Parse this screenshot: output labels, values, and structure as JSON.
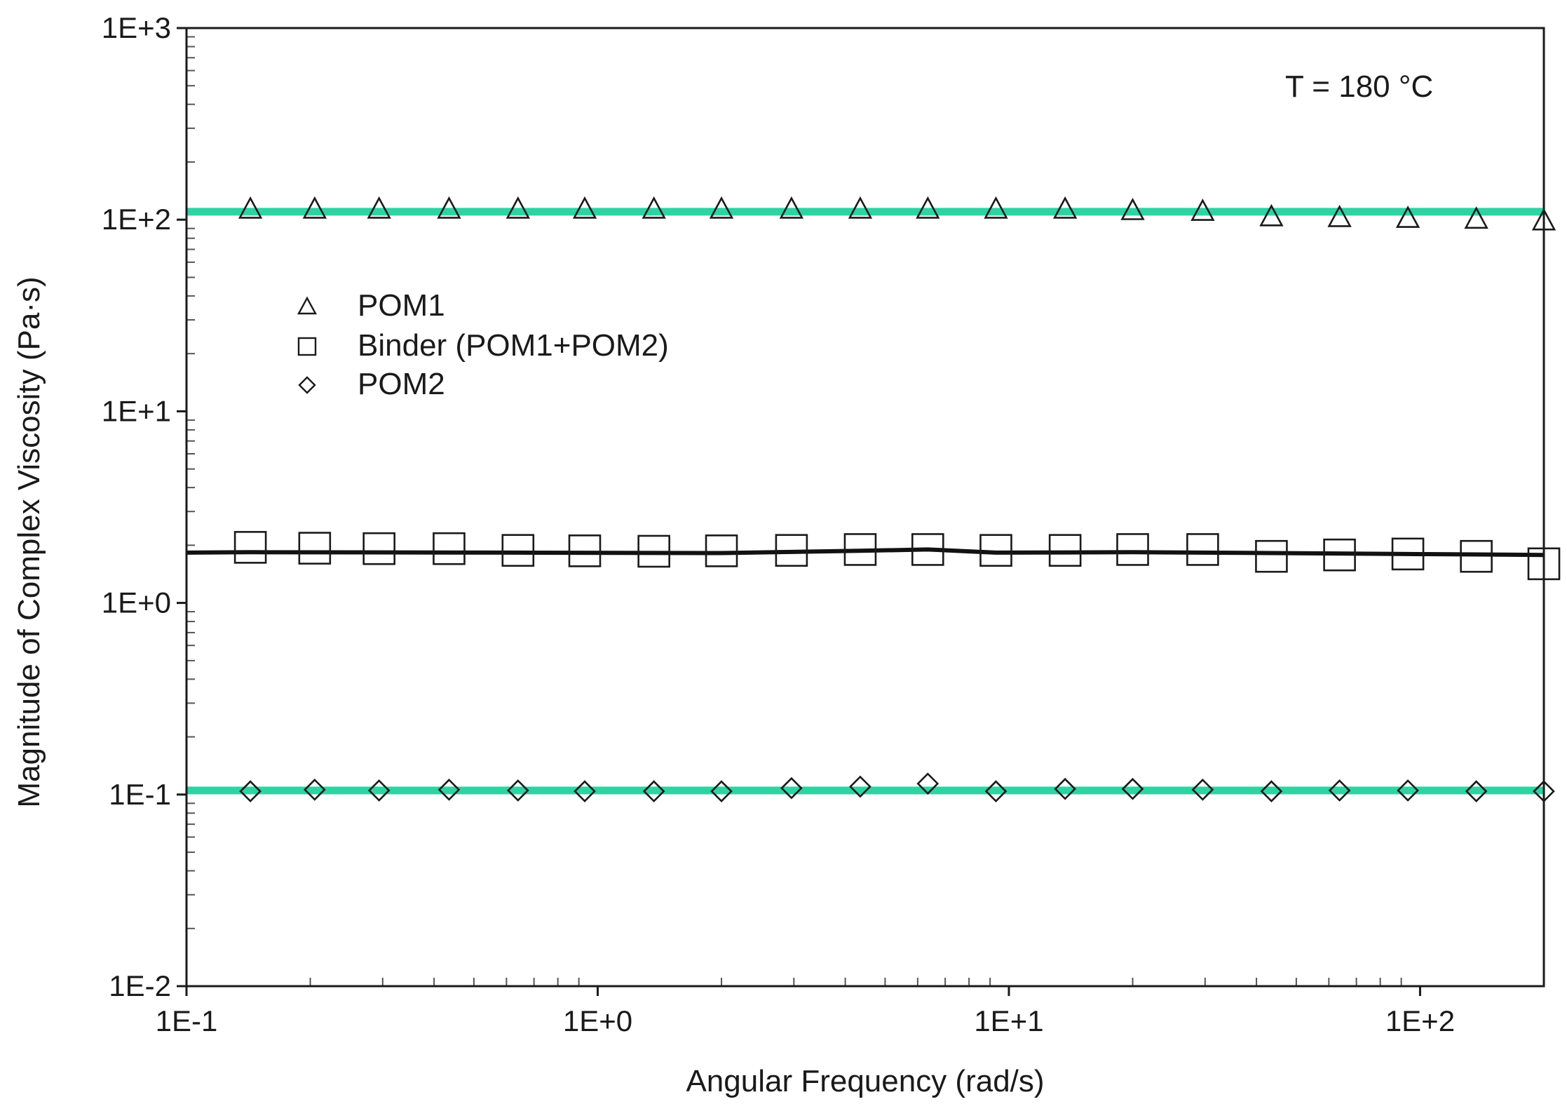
{
  "chart_data": {
    "type": "scatter",
    "title": "",
    "xlabel": "Angular Frequency (rad/s)",
    "ylabel": "Magnitude of Complex Viscosity (Pa·s)",
    "x_scale": "log",
    "y_scale": "log",
    "xlim": [
      0.1,
      200
    ],
    "ylim": [
      0.01,
      1000
    ],
    "x_ticks": [
      "1E-1",
      "1E+0",
      "1E+1",
      "1E+2"
    ],
    "y_ticks": [
      "1E-2",
      "1E-1",
      "1E+0",
      "1E+1",
      "1E+2",
      "1E+3"
    ],
    "grid": false,
    "legend_position": "upper-left",
    "annotation": "T = 180 °C",
    "x": [
      0.143,
      0.205,
      0.294,
      0.435,
      0.64,
      0.93,
      1.37,
      2.0,
      2.96,
      4.35,
      6.35,
      9.3,
      13.7,
      20.0,
      29.6,
      43.5,
      63.7,
      93.4,
      137,
      200
    ],
    "series": [
      {
        "name": "POM1",
        "marker": "triangle",
        "values": [
          114,
          114,
          114,
          114,
          114,
          114,
          114,
          114,
          114,
          114,
          114,
          114,
          114,
          112,
          111,
          104,
          103,
          102,
          101,
          99
        ]
      },
      {
        "name": "Binder (POM1+POM2)",
        "marker": "square",
        "values": [
          1.95,
          1.93,
          1.92,
          1.92,
          1.88,
          1.87,
          1.86,
          1.87,
          1.88,
          1.9,
          1.9,
          1.88,
          1.88,
          1.9,
          1.9,
          1.75,
          1.78,
          1.8,
          1.75,
          1.6
        ]
      },
      {
        "name": "POM2",
        "marker": "diamond",
        "values": [
          0.104,
          0.106,
          0.105,
          0.106,
          0.105,
          0.104,
          0.104,
          0.104,
          0.108,
          0.11,
          0.114,
          0.104,
          0.107,
          0.107,
          0.106,
          0.104,
          0.105,
          0.105,
          0.104,
          0.104
        ]
      }
    ],
    "fit_lines": [
      {
        "color": "#2ed3a4",
        "x": [
          0.1,
          200
        ],
        "y": [
          110,
          110
        ]
      },
      {
        "color": "#111111",
        "x": [
          0.1,
          0.143,
          0.64,
          2.0,
          4.35,
          6.35,
          9.3,
          20.0,
          43.5,
          93.4,
          200
        ],
        "y": [
          1.83,
          1.84,
          1.83,
          1.82,
          1.87,
          1.9,
          1.83,
          1.84,
          1.82,
          1.8,
          1.78
        ]
      },
      {
        "color": "#2ed3a4",
        "x": [
          0.1,
          200
        ],
        "y": [
          0.105,
          0.105
        ]
      }
    ]
  }
}
